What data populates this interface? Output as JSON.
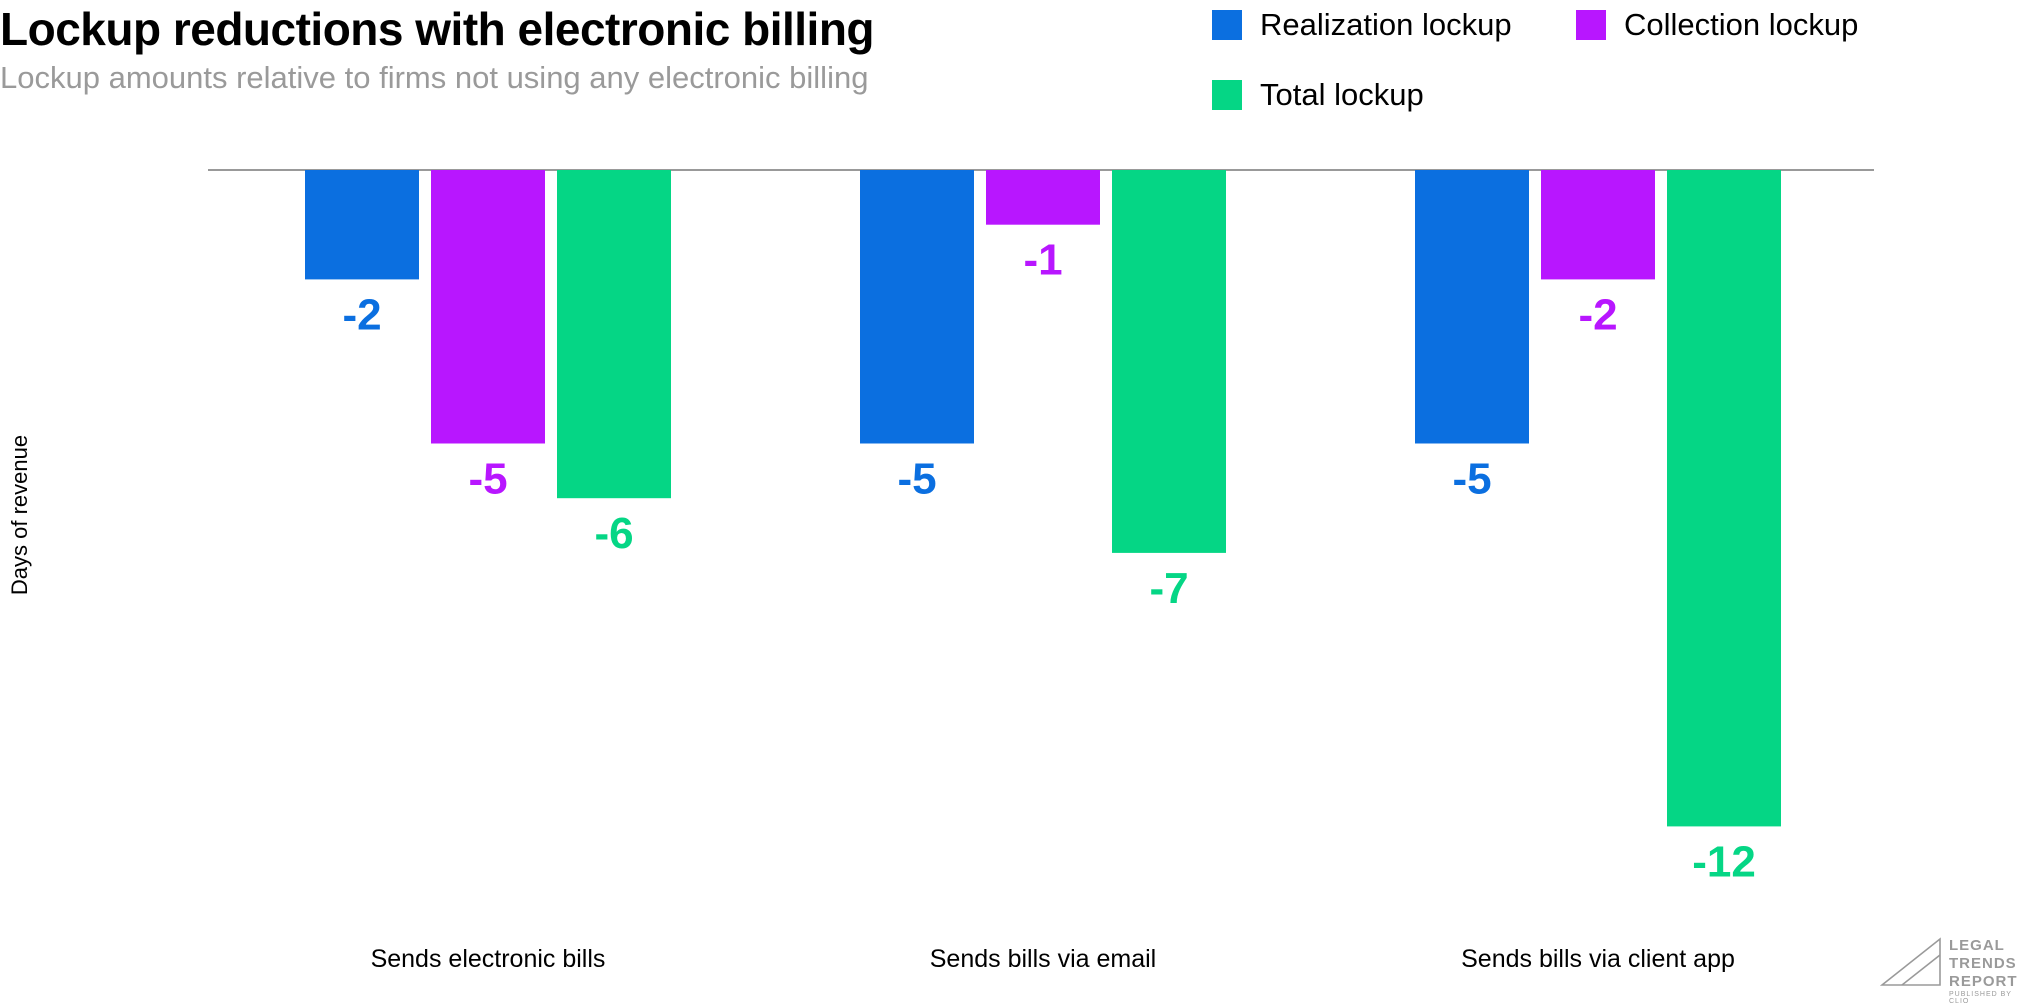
{
  "chart_data": {
    "type": "bar",
    "title": "Lockup reductions with electronic billing",
    "subtitle": "Lockup amounts relative to firms not using any electronic billing",
    "ylabel": "Days of revenue",
    "categories": [
      "Sends electronic bills",
      "Sends bills via email",
      "Sends bills via client app"
    ],
    "series": [
      {
        "name": "Realization lockup",
        "color": "#0b6fe0",
        "values": [
          -2,
          -5,
          -5
        ]
      },
      {
        "name": "Collection lockup",
        "color": "#b816ff",
        "values": [
          -5,
          -1,
          -2
        ]
      },
      {
        "name": "Total lockup",
        "color": "#05d685",
        "values": [
          -6,
          -7,
          -12
        ]
      }
    ],
    "ylim": [
      -13,
      0
    ],
    "grid": false,
    "legend": "top-right",
    "data_labels": true
  },
  "logo": {
    "lines": [
      "LEGAL",
      "TRENDS",
      "REPORT"
    ],
    "tagline": "PUBLISHED BY CLIO"
  }
}
